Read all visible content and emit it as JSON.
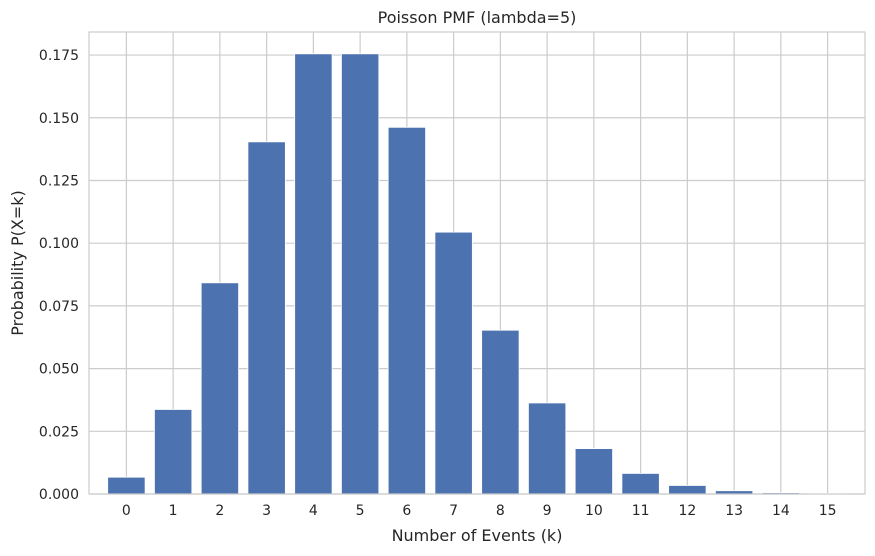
{
  "chart_data": {
    "type": "bar",
    "title": "Poisson PMF (lambda=5)",
    "xlabel": "Number of Events (k)",
    "ylabel": "Probability P(X=k)",
    "categories": [
      "0",
      "1",
      "2",
      "3",
      "4",
      "5",
      "6",
      "7",
      "8",
      "9",
      "10",
      "11",
      "12",
      "13",
      "14",
      "15"
    ],
    "values": [
      0.0067,
      0.0337,
      0.0842,
      0.1404,
      0.1755,
      0.1755,
      0.1462,
      0.1044,
      0.0653,
      0.0363,
      0.0181,
      0.0082,
      0.0034,
      0.0013,
      0.0005,
      0.0002
    ],
    "ylim": [
      0,
      0.1842
    ],
    "yticks": [
      "0.000",
      "0.025",
      "0.050",
      "0.075",
      "0.100",
      "0.125",
      "0.150",
      "0.175"
    ],
    "ytick_values": [
      0,
      0.025,
      0.05,
      0.075,
      0.1,
      0.125,
      0.15,
      0.175
    ],
    "grid": true,
    "bar_color": "#4c72b0",
    "grid_color": "#cccccc",
    "background": "#ffffff"
  }
}
